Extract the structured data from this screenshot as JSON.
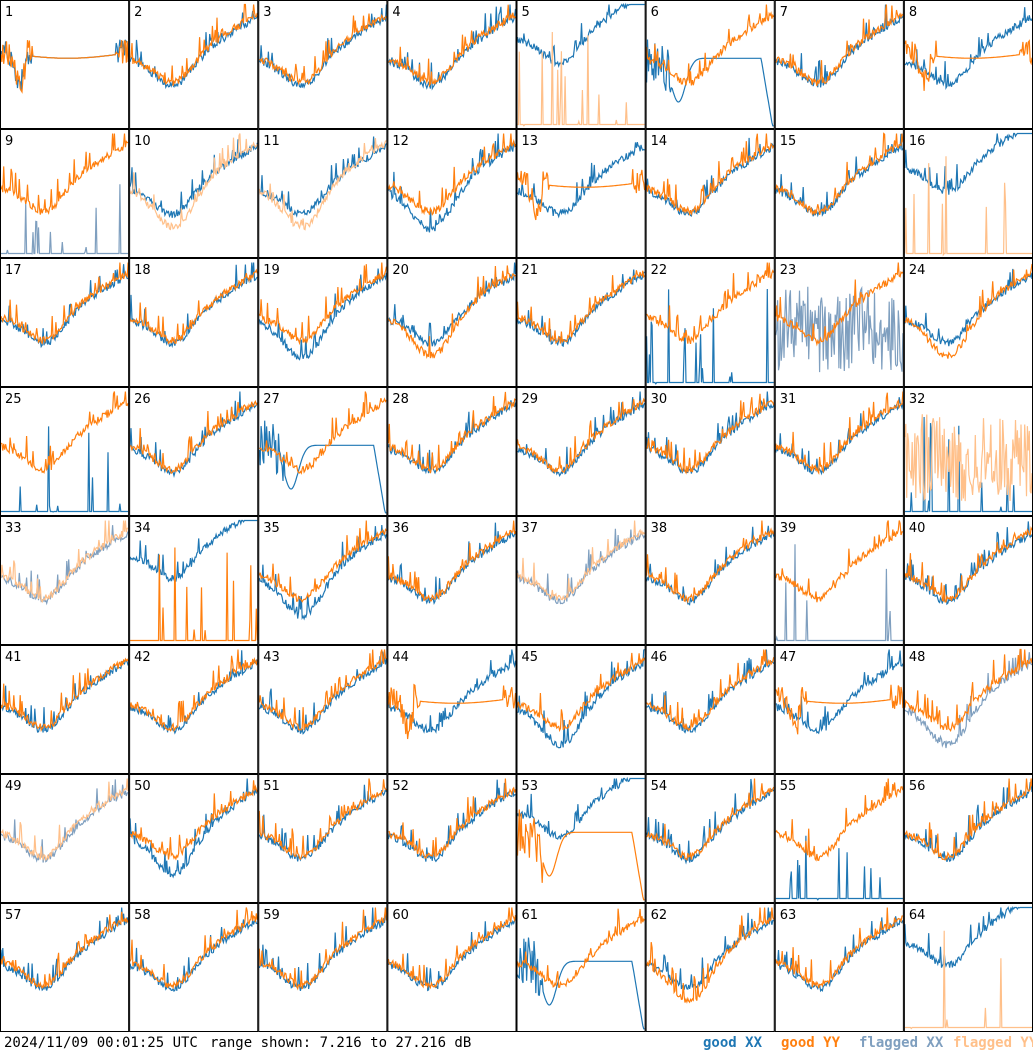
{
  "footer": {
    "timestamp": "2024/11/09 00:01:25 UTC",
    "range": "range shown: 7.216 to 27.216 dB"
  },
  "legend": [
    {
      "key": "good_xx",
      "label": "good XX",
      "color": "#1f77b4"
    },
    {
      "key": "good_yy",
      "label": "good YY",
      "color": "#ff7f0e"
    },
    {
      "key": "flagged_xx",
      "label": "flagged XX",
      "color": "#7f9fbf"
    },
    {
      "key": "flagged_yy",
      "label": "flagged YY",
      "color": "#ffc08a"
    }
  ],
  "chart_data": {
    "type": "line",
    "layout": "small-multiples 8x8",
    "ylim_db": [
      7.216,
      27.216
    ],
    "series_names": [
      "XX",
      "YY"
    ],
    "panels": [
      {
        "id": "1",
        "xx": "good",
        "yy": "good",
        "xx_shape": "plateau",
        "yy_shape": "plateau"
      },
      {
        "id": "2",
        "xx": "good",
        "yy": "good",
        "xx_shape": "normal",
        "yy_shape": "normal"
      },
      {
        "id": "3",
        "xx": "good",
        "yy": "good",
        "xx_shape": "normal",
        "yy_shape": "normal"
      },
      {
        "id": "4",
        "xx": "good",
        "yy": "good",
        "xx_shape": "normal",
        "yy_shape": "normal"
      },
      {
        "id": "5",
        "xx": "good",
        "yy": "flagged",
        "xx_shape": "high",
        "yy_shape": "spikes"
      },
      {
        "id": "6",
        "xx": "good",
        "yy": "good",
        "xx_shape": "dip",
        "yy_shape": "normal"
      },
      {
        "id": "7",
        "xx": "good",
        "yy": "good",
        "xx_shape": "normal",
        "yy_shape": "normal"
      },
      {
        "id": "8",
        "xx": "good",
        "yy": "good",
        "xx_shape": "normal",
        "yy_shape": "plateau"
      },
      {
        "id": "9",
        "xx": "flagged",
        "yy": "good",
        "xx_shape": "spikes",
        "yy_shape": "normal"
      },
      {
        "id": "10",
        "xx": "good",
        "yy": "flagged",
        "xx_shape": "normal",
        "yy_shape": "low"
      },
      {
        "id": "11",
        "xx": "good",
        "yy": "flagged",
        "xx_shape": "normal",
        "yy_shape": "low"
      },
      {
        "id": "12",
        "xx": "good",
        "yy": "good",
        "xx_shape": "low",
        "yy_shape": "normal"
      },
      {
        "id": "13",
        "xx": "good",
        "yy": "good",
        "xx_shape": "normal",
        "yy_shape": "plateau"
      },
      {
        "id": "14",
        "xx": "good",
        "yy": "good",
        "xx_shape": "normal",
        "yy_shape": "normal"
      },
      {
        "id": "15",
        "xx": "good",
        "yy": "good",
        "xx_shape": "normal",
        "yy_shape": "normal"
      },
      {
        "id": "16",
        "xx": "good",
        "yy": "flagged",
        "xx_shape": "high",
        "yy_shape": "spikes"
      },
      {
        "id": "17",
        "xx": "good",
        "yy": "good",
        "xx_shape": "normal",
        "yy_shape": "normal"
      },
      {
        "id": "18",
        "xx": "good",
        "yy": "good",
        "xx_shape": "normal",
        "yy_shape": "normal"
      },
      {
        "id": "19",
        "xx": "good",
        "yy": "good",
        "xx_shape": "low",
        "yy_shape": "normal"
      },
      {
        "id": "20",
        "xx": "good",
        "yy": "good",
        "xx_shape": "normal",
        "yy_shape": "low"
      },
      {
        "id": "21",
        "xx": "good",
        "yy": "good",
        "xx_shape": "normal",
        "yy_shape": "normal"
      },
      {
        "id": "22",
        "xx": "good",
        "yy": "good",
        "xx_shape": "spikes",
        "yy_shape": "normal"
      },
      {
        "id": "23",
        "xx": "flagged",
        "yy": "good",
        "xx_shape": "noisy",
        "yy_shape": "normal"
      },
      {
        "id": "24",
        "xx": "good",
        "yy": "good",
        "xx_shape": "normal",
        "yy_shape": "low"
      },
      {
        "id": "25",
        "xx": "good",
        "yy": "good",
        "xx_shape": "spikes",
        "yy_shape": "normal"
      },
      {
        "id": "26",
        "xx": "good",
        "yy": "good",
        "xx_shape": "normal",
        "yy_shape": "normal"
      },
      {
        "id": "27",
        "xx": "good",
        "yy": "good",
        "xx_shape": "dip",
        "yy_shape": "normal"
      },
      {
        "id": "28",
        "xx": "good",
        "yy": "good",
        "xx_shape": "normal",
        "yy_shape": "normal"
      },
      {
        "id": "29",
        "xx": "good",
        "yy": "good",
        "xx_shape": "normal",
        "yy_shape": "normal"
      },
      {
        "id": "30",
        "xx": "good",
        "yy": "good",
        "xx_shape": "normal",
        "yy_shape": "normal"
      },
      {
        "id": "31",
        "xx": "good",
        "yy": "good",
        "xx_shape": "normal",
        "yy_shape": "normal"
      },
      {
        "id": "32",
        "xx": "good",
        "yy": "flagged",
        "xx_shape": "spikes",
        "yy_shape": "noisy"
      },
      {
        "id": "33",
        "xx": "flagged",
        "yy": "flagged",
        "xx_shape": "normal",
        "yy_shape": "normal"
      },
      {
        "id": "34",
        "xx": "good",
        "yy": "good",
        "xx_shape": "high",
        "yy_shape": "spikes"
      },
      {
        "id": "35",
        "xx": "good",
        "yy": "good",
        "xx_shape": "low",
        "yy_shape": "normal"
      },
      {
        "id": "36",
        "xx": "good",
        "yy": "good",
        "xx_shape": "normal",
        "yy_shape": "normal"
      },
      {
        "id": "37",
        "xx": "flagged",
        "yy": "flagged",
        "xx_shape": "normal",
        "yy_shape": "normal"
      },
      {
        "id": "38",
        "xx": "good",
        "yy": "good",
        "xx_shape": "normal",
        "yy_shape": "normal"
      },
      {
        "id": "39",
        "xx": "flagged",
        "yy": "good",
        "xx_shape": "spikes",
        "yy_shape": "normal"
      },
      {
        "id": "40",
        "xx": "good",
        "yy": "good",
        "xx_shape": "normal",
        "yy_shape": "normal"
      },
      {
        "id": "41",
        "xx": "good",
        "yy": "good",
        "xx_shape": "normal",
        "yy_shape": "normal"
      },
      {
        "id": "42",
        "xx": "good",
        "yy": "good",
        "xx_shape": "normal",
        "yy_shape": "normal"
      },
      {
        "id": "43",
        "xx": "good",
        "yy": "good",
        "xx_shape": "normal",
        "yy_shape": "normal"
      },
      {
        "id": "44",
        "xx": "good",
        "yy": "good",
        "xx_shape": "normal",
        "yy_shape": "plateau"
      },
      {
        "id": "45",
        "xx": "good",
        "yy": "good",
        "xx_shape": "low",
        "yy_shape": "normal"
      },
      {
        "id": "46",
        "xx": "good",
        "yy": "good",
        "xx_shape": "normal",
        "yy_shape": "normal"
      },
      {
        "id": "47",
        "xx": "good",
        "yy": "good",
        "xx_shape": "normal",
        "yy_shape": "plateau"
      },
      {
        "id": "48",
        "xx": "flagged",
        "yy": "good",
        "xx_shape": "low",
        "yy_shape": "normal"
      },
      {
        "id": "49",
        "xx": "flagged",
        "yy": "flagged",
        "xx_shape": "normal",
        "yy_shape": "normal"
      },
      {
        "id": "50",
        "xx": "good",
        "yy": "good",
        "xx_shape": "low",
        "yy_shape": "normal"
      },
      {
        "id": "51",
        "xx": "good",
        "yy": "good",
        "xx_shape": "normal",
        "yy_shape": "normal"
      },
      {
        "id": "52",
        "xx": "good",
        "yy": "good",
        "xx_shape": "normal",
        "yy_shape": "normal"
      },
      {
        "id": "53",
        "xx": "good",
        "yy": "good",
        "xx_shape": "high",
        "yy_shape": "dip"
      },
      {
        "id": "54",
        "xx": "good",
        "yy": "good",
        "xx_shape": "normal",
        "yy_shape": "normal"
      },
      {
        "id": "55",
        "xx": "good",
        "yy": "good",
        "xx_shape": "spikes",
        "yy_shape": "normal"
      },
      {
        "id": "56",
        "xx": "good",
        "yy": "good",
        "xx_shape": "normal",
        "yy_shape": "normal"
      },
      {
        "id": "57",
        "xx": "good",
        "yy": "good",
        "xx_shape": "normal",
        "yy_shape": "normal"
      },
      {
        "id": "58",
        "xx": "good",
        "yy": "good",
        "xx_shape": "normal",
        "yy_shape": "normal"
      },
      {
        "id": "59",
        "xx": "good",
        "yy": "good",
        "xx_shape": "normal",
        "yy_shape": "normal"
      },
      {
        "id": "60",
        "xx": "good",
        "yy": "good",
        "xx_shape": "normal",
        "yy_shape": "normal"
      },
      {
        "id": "61",
        "xx": "good",
        "yy": "good",
        "xx_shape": "dip",
        "yy_shape": "normal"
      },
      {
        "id": "62",
        "xx": "good",
        "yy": "good",
        "xx_shape": "normal",
        "yy_shape": "low"
      },
      {
        "id": "63",
        "xx": "good",
        "yy": "good",
        "xx_shape": "normal",
        "yy_shape": "normal"
      },
      {
        "id": "64",
        "xx": "good",
        "yy": "flagged",
        "xx_shape": "high",
        "yy_shape": "spikes"
      }
    ]
  }
}
